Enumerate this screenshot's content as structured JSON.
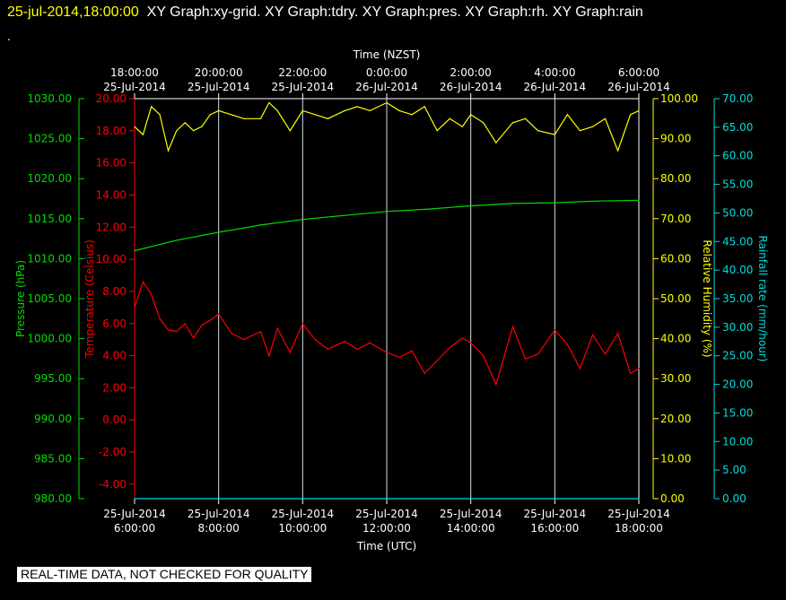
{
  "header": {
    "timestamp": "25-jul-2014,18:00:00",
    "graphs": "XY Graph:xy-grid.  XY Graph:tdry.  XY Graph:pres.  XY Graph:rh.  XY Graph:rain",
    "dot": "."
  },
  "footer": {
    "notice": "REAL-TIME DATA, NOT CHECKED FOR QUALITY"
  },
  "colors": {
    "pressure": "#00dd00",
    "temperature": "#ff0000",
    "humidity": "#ffff00",
    "rain": "#00dddd",
    "grid": "#ffffff",
    "background": "#000000"
  },
  "chart_data": {
    "type": "line",
    "top_axis": {
      "label": "Time (NZST)",
      "ticks": [
        {
          "time": "18:00:00",
          "date": "25-Jul-2014"
        },
        {
          "time": "20:00:00",
          "date": "25-Jul-2014"
        },
        {
          "time": "22:00:00",
          "date": "25-Jul-2014"
        },
        {
          "time": "0:00:00",
          "date": "26-Jul-2014"
        },
        {
          "time": "2:00:00",
          "date": "26-Jul-2014"
        },
        {
          "time": "4:00:00",
          "date": "26-Jul-2014"
        },
        {
          "time": "6:00:00",
          "date": "26-Jul-2014"
        }
      ]
    },
    "bottom_axis": {
      "label": "Time (UTC)",
      "ticks": [
        {
          "date": "25-Jul-2014",
          "time": "6:00:00"
        },
        {
          "date": "25-Jul-2014",
          "time": "8:00:00"
        },
        {
          "date": "25-Jul-2014",
          "time": "10:00:00"
        },
        {
          "date": "25-Jul-2014",
          "time": "12:00:00"
        },
        {
          "date": "25-Jul-2014",
          "time": "14:00:00"
        },
        {
          "date": "25-Jul-2014",
          "time": "16:00:00"
        },
        {
          "date": "25-Jul-2014",
          "time": "18:00:00"
        }
      ],
      "xlim_hours_utc": [
        6,
        18
      ]
    },
    "pressure_axis": {
      "label": "Pressure (hPa)",
      "ylim": [
        980,
        1030
      ],
      "ticks": [
        "980.00",
        "985.00",
        "990.00",
        "995.00",
        "1000.00",
        "1005.00",
        "1010.00",
        "1015.00",
        "1020.00",
        "1025.00",
        "1030.00"
      ]
    },
    "temperature_axis": {
      "label": "Temperature (Celsius)",
      "ylim": [
        -4.9,
        20
      ],
      "ticks": [
        "-4.00",
        "-2.00",
        "0.00",
        "2.00",
        "4.00",
        "6.00",
        "8.00",
        "10.00",
        "12.00",
        "14.00",
        "16.00",
        "18.00",
        "20.00"
      ]
    },
    "humidity_axis": {
      "label": "Relative Humidity (%)",
      "ylim": [
        0,
        100
      ],
      "ticks": [
        "0.00",
        "10.00",
        "20.00",
        "30.00",
        "40.00",
        "50.00",
        "60.00",
        "70.00",
        "80.00",
        "90.00",
        "100.00"
      ]
    },
    "rain_axis": {
      "label": "Rainfall rate (mm/hour)",
      "ylim": [
        0,
        70
      ],
      "ticks": [
        "0.00",
        "5.00",
        "10.00",
        "15.00",
        "20.00",
        "25.00",
        "30.00",
        "35.00",
        "40.00",
        "45.00",
        "50.00",
        "55.00",
        "60.00",
        "65.00",
        "70.00"
      ]
    },
    "series": [
      {
        "name": "pres",
        "axis": "pressure",
        "x": [
          6,
          7,
          8,
          9,
          10,
          11,
          12,
          13,
          14,
          15,
          16,
          17,
          18
        ],
        "values": [
          1011.0,
          1012.3,
          1013.3,
          1014.2,
          1014.9,
          1015.4,
          1015.9,
          1016.2,
          1016.6,
          1016.9,
          1017.0,
          1017.2,
          1017.3
        ]
      },
      {
        "name": "tdry",
        "axis": "temperature",
        "x": [
          6,
          6.2,
          6.4,
          6.6,
          6.8,
          7,
          7.2,
          7.4,
          7.6,
          7.8,
          8,
          8.3,
          8.6,
          9,
          9.2,
          9.4,
          9.7,
          10,
          10.3,
          10.6,
          11,
          11.3,
          11.6,
          12,
          12.3,
          12.6,
          12.9,
          13.2,
          13.5,
          13.8,
          14,
          14.3,
          14.6,
          15,
          15.3,
          15.6,
          16,
          16.3,
          16.6,
          16.9,
          17.2,
          17.5,
          17.8,
          18
        ],
        "values": [
          7.0,
          8.6,
          7.8,
          6.3,
          5.6,
          5.5,
          6.0,
          5.1,
          5.9,
          6.2,
          6.6,
          5.4,
          5.0,
          5.5,
          4.0,
          5.7,
          4.2,
          6.0,
          5.0,
          4.4,
          4.9,
          4.4,
          4.8,
          4.2,
          3.9,
          4.3,
          2.9,
          3.7,
          4.5,
          5.1,
          4.8,
          4.0,
          2.2,
          5.8,
          3.8,
          4.1,
          5.6,
          4.7,
          3.2,
          5.3,
          4.1,
          5.4,
          2.9,
          3.2
        ]
      },
      {
        "name": "rh",
        "axis": "humidity",
        "x": [
          6,
          6.2,
          6.4,
          6.6,
          6.8,
          7,
          7.2,
          7.4,
          7.6,
          7.8,
          8,
          8.3,
          8.6,
          9,
          9.2,
          9.4,
          9.7,
          10,
          10.3,
          10.6,
          11,
          11.3,
          11.6,
          12,
          12.3,
          12.6,
          12.9,
          13.2,
          13.5,
          13.8,
          14,
          14.3,
          14.6,
          15,
          15.3,
          15.6,
          16,
          16.3,
          16.6,
          16.9,
          17.2,
          17.5,
          17.8,
          18
        ],
        "values": [
          93,
          91,
          98,
          96,
          87,
          92,
          94,
          92,
          93,
          96,
          97,
          96,
          95,
          95,
          99,
          97,
          92,
          97,
          96,
          95,
          97,
          98,
          97,
          99,
          97,
          96,
          98,
          92,
          95,
          93,
          96,
          94,
          89,
          94,
          95,
          92,
          91,
          96,
          92,
          93,
          95,
          87,
          96,
          97
        ]
      },
      {
        "name": "rain",
        "axis": "rain",
        "x": [
          6,
          18
        ],
        "values": [
          0,
          0
        ]
      }
    ]
  }
}
